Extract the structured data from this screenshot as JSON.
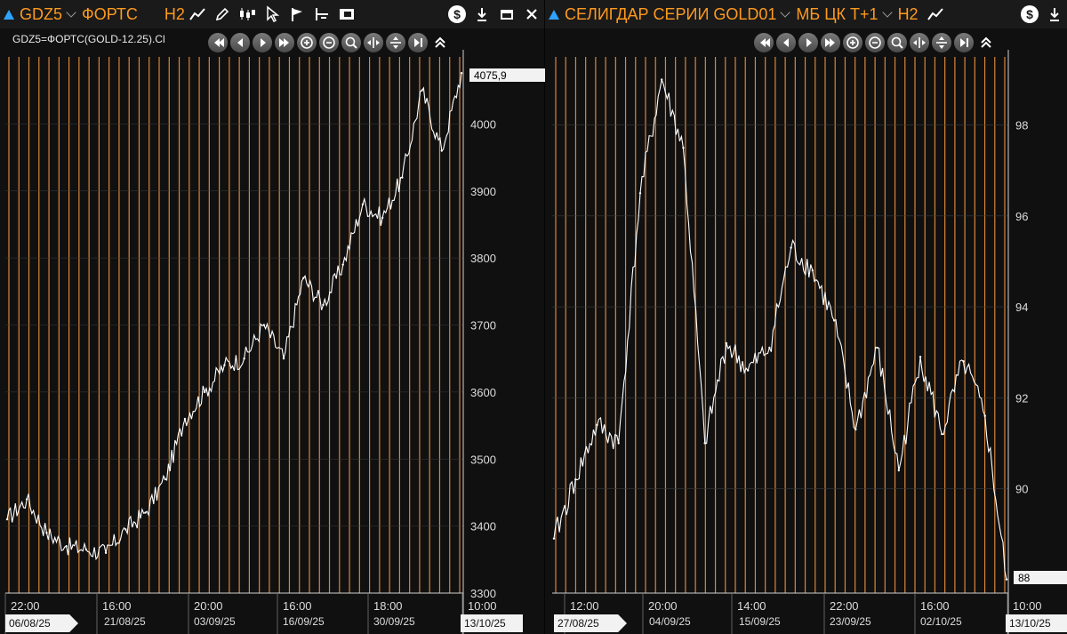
{
  "left": {
    "title": {
      "symbol": "GDZ5",
      "exchange": "ФОРТС",
      "interval": "H2"
    },
    "subtitle": "GDZ5=ФОРТС(GOLD-12.25).Cl",
    "last_value": "4075,9",
    "y_ticks": [
      "4000",
      "3900",
      "3800",
      "3700",
      "3600",
      "3500",
      "3400",
      "3300"
    ],
    "time_labels": [
      "22:00",
      "16:00",
      "20:00",
      "16:00",
      "18:00",
      "10:00"
    ],
    "date_labels": [
      "06/08/25",
      "21/08/25",
      "03/09/25",
      "16/09/25",
      "30/09/25",
      "13/10/25"
    ]
  },
  "right": {
    "title": {
      "symbol": "СЕЛИГДАР СЕРИИ GOLD01",
      "exchange": "МБ ЦК Т+1",
      "interval": "H2"
    },
    "last_value": "88",
    "y_ticks": [
      "98",
      "96",
      "94",
      "92",
      "90"
    ],
    "time_labels": [
      "12:00",
      "20:00",
      "14:00",
      "22:00",
      "16:00",
      "10:00"
    ],
    "date_labels": [
      "27/08/25",
      "04/09/25",
      "15/09/25",
      "23/09/25",
      "02/10/25",
      "13/10/25"
    ]
  },
  "colors": {
    "accent": "#ff9a1e",
    "grid": "#d9863a",
    "line": "#ffffff",
    "background": "#101010",
    "toolbar": "#1a1a1a"
  },
  "icons": [
    "up-triangle-icon",
    "chevron-down-icon",
    "line-chart-icon",
    "pencil-icon",
    "candles-icon",
    "cursor-icon",
    "flag-icon",
    "ruler-icon",
    "camera-icon",
    "dollar-icon",
    "download-icon",
    "minimize-icon",
    "close-icon"
  ],
  "chart_data": [
    {
      "type": "line",
      "title": "GDZ5=ФОРТС(GOLD-12.25).Cl",
      "ylim": [
        3300,
        4100
      ],
      "x": [
        "06/08/25",
        "09/08/25",
        "13/08/25",
        "16/08/25",
        "19/08/25",
        "21/08/25",
        "24/08/25",
        "27/08/25",
        "30/08/25",
        "03/09/25",
        "06/09/25",
        "09/09/25",
        "12/09/25",
        "16/09/25",
        "19/09/25",
        "22/09/25",
        "25/09/25",
        "28/09/25",
        "30/09/25",
        "02/10/25",
        "05/10/25",
        "08/10/25",
        "10/10/25",
        "13/10/25"
      ],
      "values": [
        3410,
        3440,
        3390,
        3370,
        3365,
        3360,
        3395,
        3420,
        3470,
        3560,
        3600,
        3640,
        3650,
        3700,
        3650,
        3770,
        3730,
        3790,
        3880,
        3860,
        3920,
        4050,
        3960,
        4075.9
      ],
      "last_value": 4075.9,
      "grid": true
    },
    {
      "type": "line",
      "title": "СЕЛИГДАР СЕРИИ GOLD01",
      "ylim": [
        87.7,
        99.5
      ],
      "x": [
        "27/08/25",
        "29/08/25",
        "01/09/25",
        "04/09/25",
        "06/09/25",
        "09/09/25",
        "11/09/25",
        "13/09/25",
        "15/09/25",
        "17/09/25",
        "19/09/25",
        "21/09/25",
        "23/09/25",
        "25/09/25",
        "28/09/25",
        "30/09/25",
        "02/10/25",
        "04/10/25",
        "07/10/25",
        "09/10/25",
        "11/10/25",
        "13/10/25"
      ],
      "values": [
        88.9,
        90.2,
        91.4,
        91.0,
        96.5,
        99.0,
        97.5,
        91.0,
        93.2,
        92.6,
        93.1,
        95.3,
        94.8,
        93.7,
        91.3,
        93.1,
        90.4,
        92.9,
        91.2,
        92.8,
        91.6,
        88.0
      ],
      "last_value": 88,
      "grid": true
    }
  ]
}
